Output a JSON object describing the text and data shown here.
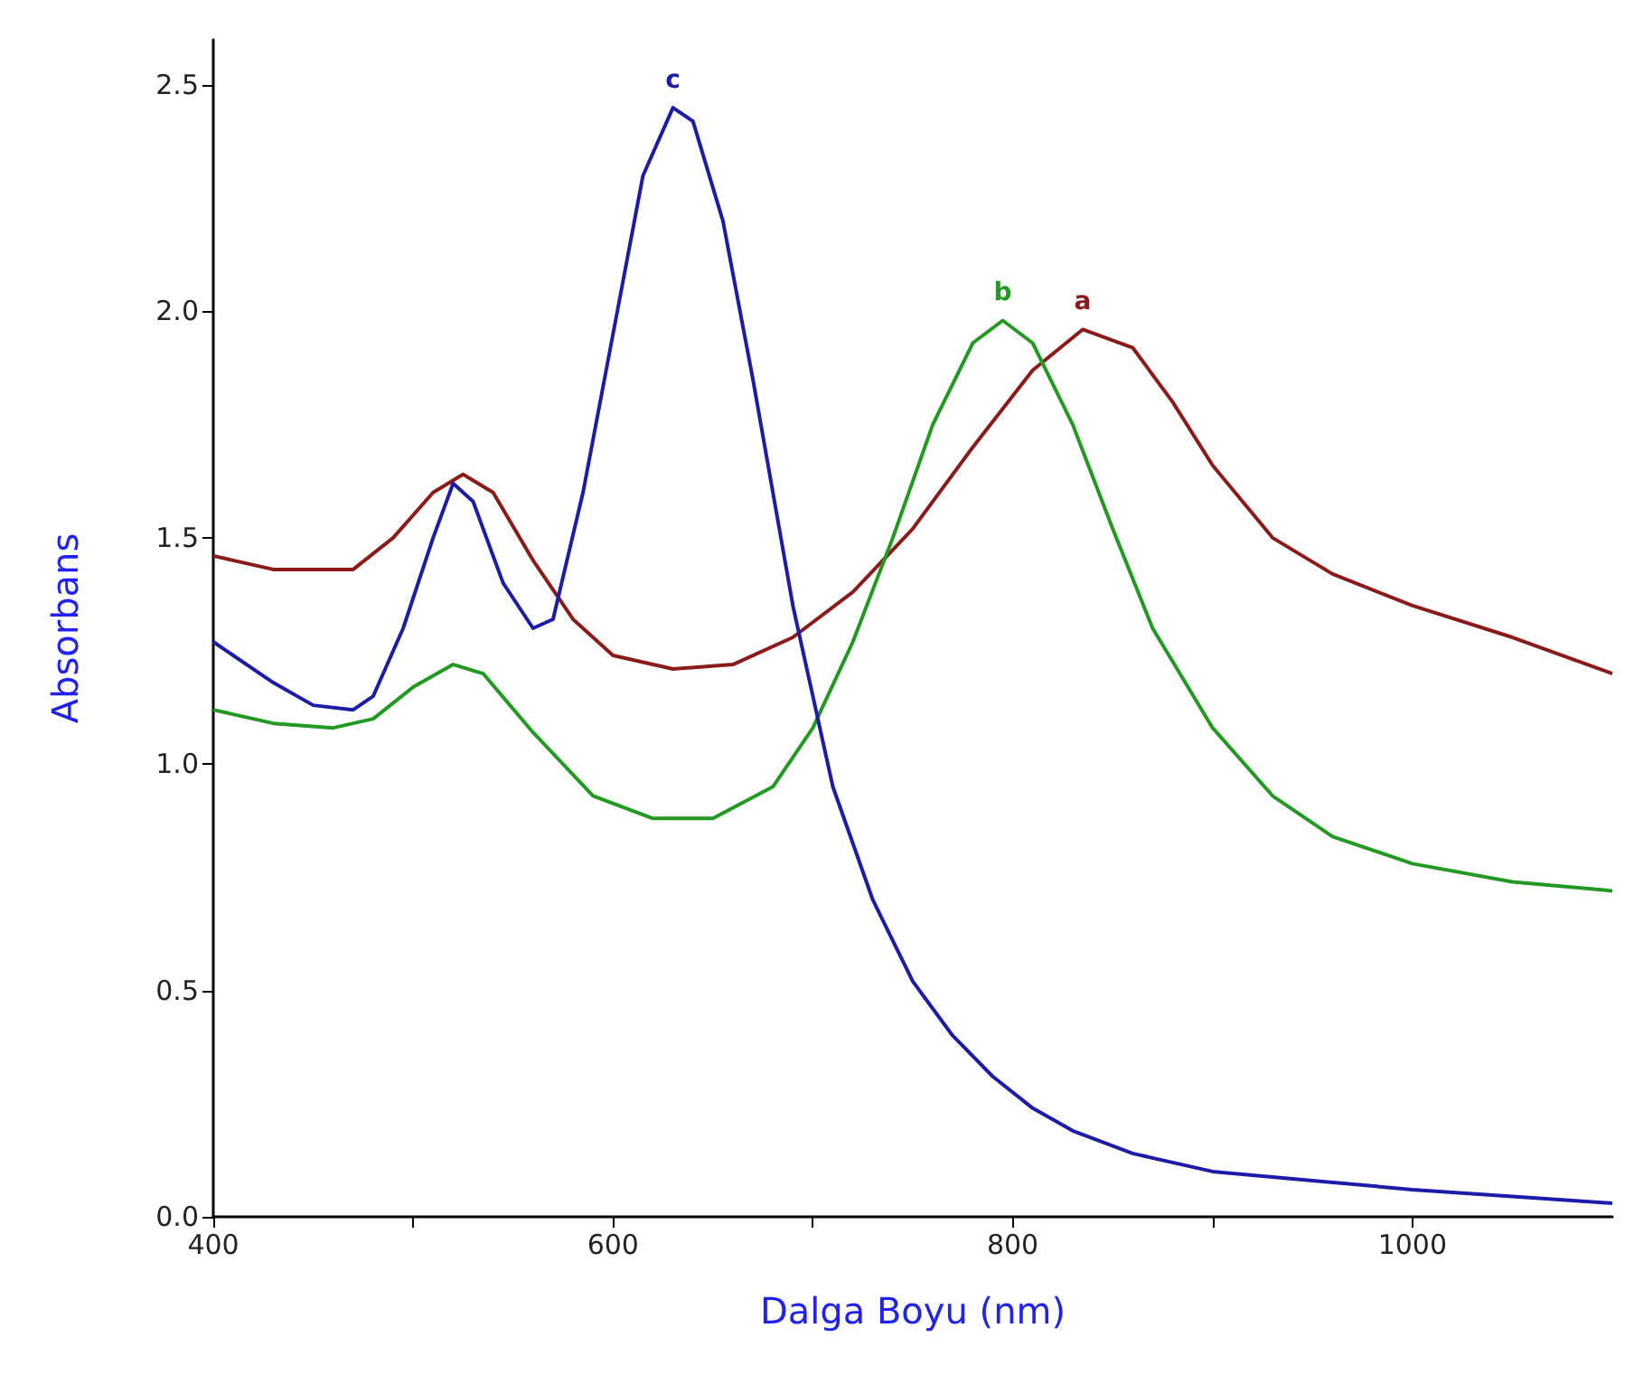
{
  "chart_data": {
    "type": "line",
    "xlabel": "Dalga Boyu (nm)",
    "ylabel": "Absorbans",
    "xlim": [
      400,
      1100
    ],
    "xticks": [
      400,
      {
        "value": 500,
        "label": null
      },
      600,
      {
        "value": 700,
        "label": null
      },
      800,
      {
        "value": 900,
        "label": null
      },
      1000
    ],
    "ylim": [
      0,
      2.6
    ],
    "yticks": [
      {
        "value": 0,
        "label": "0.0"
      },
      0.5,
      {
        "value": 1,
        "label": "1.0"
      },
      1.5,
      {
        "value": 2,
        "label": "2.0"
      },
      2.5
    ],
    "grid": false,
    "legend": false,
    "marker": "none",
    "line_style": "solid",
    "series": [
      {
        "name": "a",
        "color": "#8b1a1a",
        "x": [
          400,
          430,
          470,
          490,
          510,
          525,
          540,
          560,
          580,
          600,
          630,
          660,
          690,
          720,
          750,
          780,
          810,
          835,
          860,
          880,
          900,
          930,
          960,
          1000,
          1050,
          1100
        ],
        "values": [
          1.46,
          1.43,
          1.43,
          1.5,
          1.6,
          1.64,
          1.6,
          1.45,
          1.32,
          1.24,
          1.21,
          1.22,
          1.28,
          1.38,
          1.52,
          1.7,
          1.87,
          1.96,
          1.92,
          1.8,
          1.66,
          1.5,
          1.42,
          1.35,
          1.28,
          1.2
        ]
      },
      {
        "name": "b",
        "color": "#229922",
        "x": [
          400,
          430,
          460,
          480,
          500,
          520,
          535,
          560,
          590,
          620,
          650,
          680,
          700,
          720,
          740,
          760,
          780,
          795,
          810,
          830,
          850,
          870,
          900,
          930,
          960,
          1000,
          1050,
          1100
        ],
        "values": [
          1.12,
          1.09,
          1.08,
          1.1,
          1.17,
          1.22,
          1.2,
          1.07,
          0.93,
          0.88,
          0.88,
          0.95,
          1.08,
          1.27,
          1.5,
          1.75,
          1.93,
          1.98,
          1.93,
          1.75,
          1.52,
          1.3,
          1.08,
          0.93,
          0.84,
          0.78,
          0.74,
          0.72
        ]
      },
      {
        "name": "c",
        "color": "#1c1ca8",
        "x": [
          400,
          430,
          450,
          470,
          480,
          495,
          510,
          520,
          530,
          545,
          560,
          570,
          585,
          600,
          615,
          630,
          640,
          655,
          670,
          690,
          710,
          730,
          750,
          770,
          790,
          810,
          830,
          860,
          900,
          950,
          1000,
          1050,
          1100
        ],
        "values": [
          1.27,
          1.18,
          1.13,
          1.12,
          1.15,
          1.3,
          1.5,
          1.62,
          1.58,
          1.4,
          1.3,
          1.32,
          1.6,
          1.95,
          2.3,
          2.45,
          2.42,
          2.2,
          1.85,
          1.35,
          0.95,
          0.7,
          0.52,
          0.4,
          0.31,
          0.24,
          0.19,
          0.14,
          0.1,
          0.08,
          0.06,
          0.045,
          0.03
        ]
      }
    ]
  }
}
